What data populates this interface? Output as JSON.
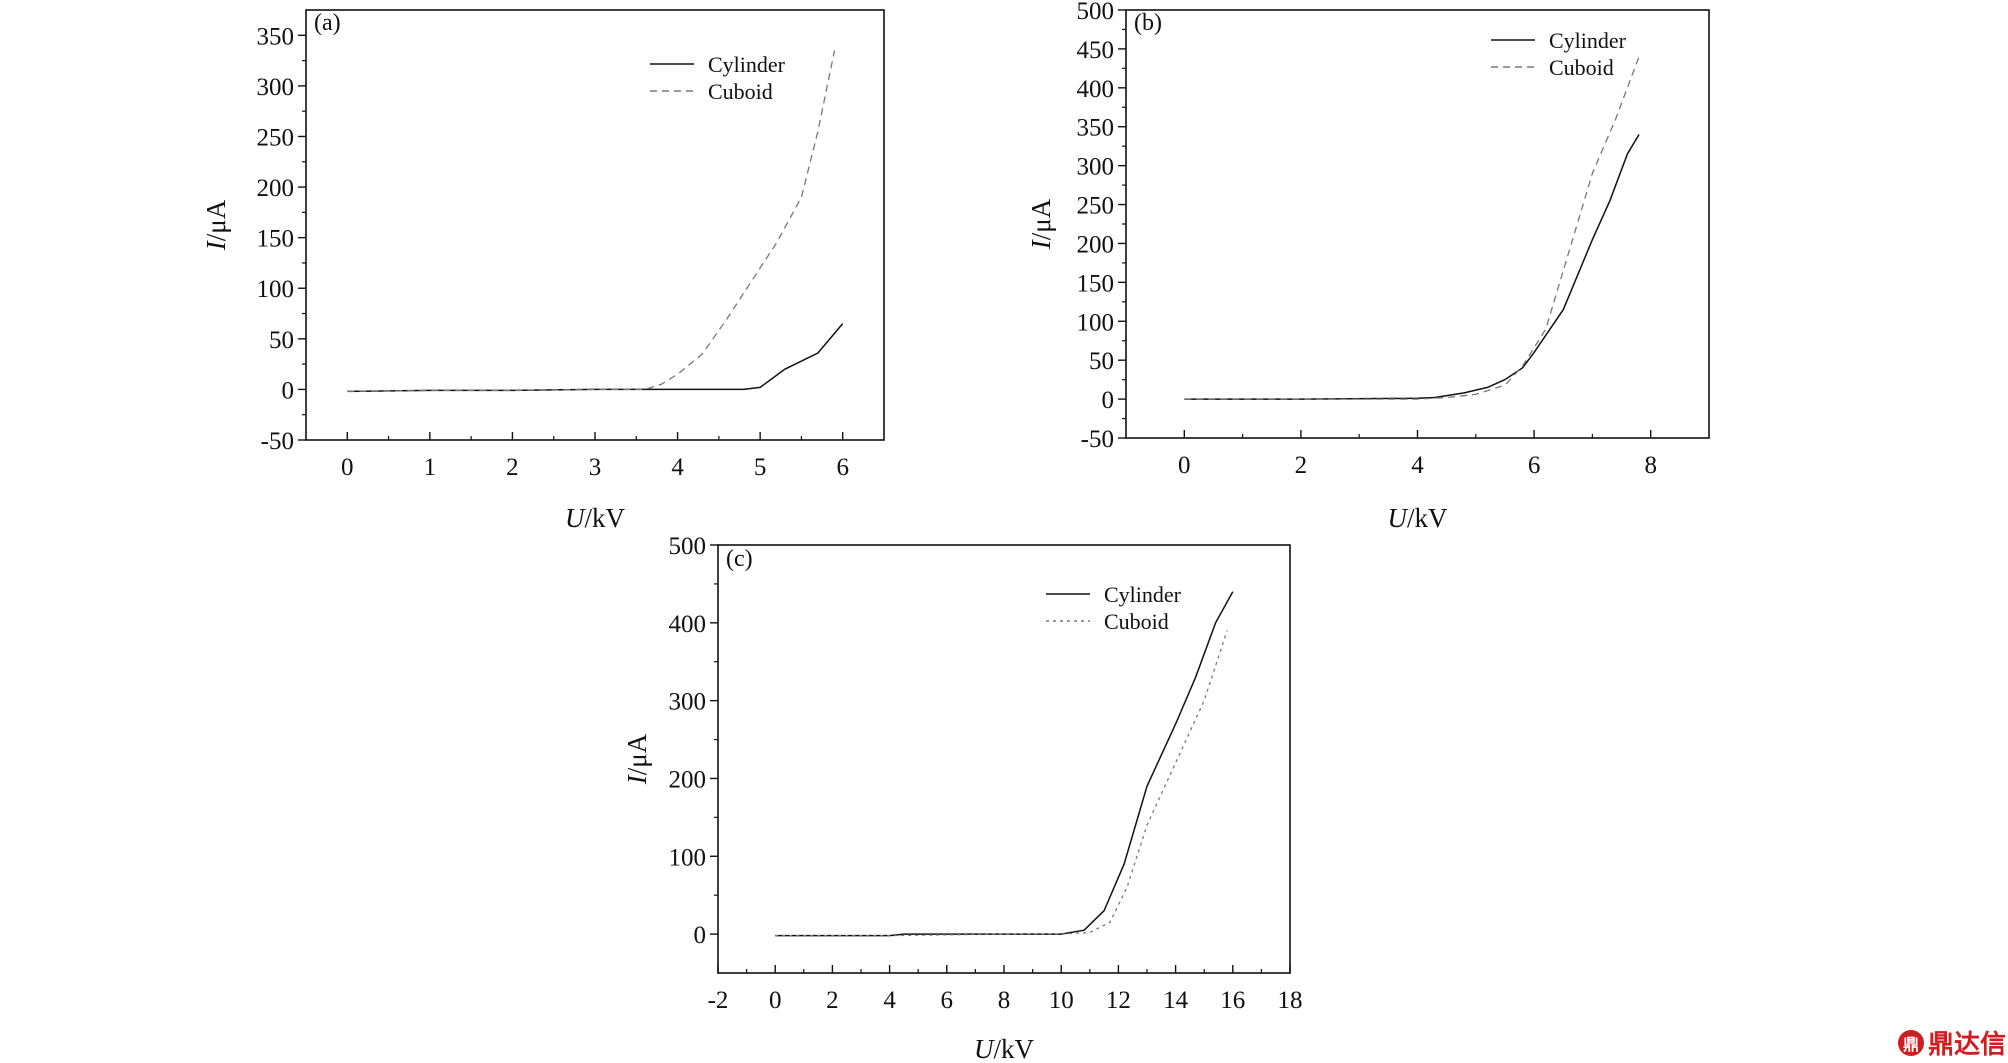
{
  "chart_data": [
    {
      "id": "a",
      "type": "line",
      "panel_label": "(a)",
      "xlabel_italic": "U",
      "xlabel_unit": "/kV",
      "ylabel_italic": "I",
      "ylabel_unit": "/μA",
      "xlim": [
        -0.5,
        6.5
      ],
      "ylim": [
        -50,
        375
      ],
      "xticks": [
        0,
        1,
        2,
        3,
        4,
        5,
        6
      ],
      "yticks": [
        -50,
        0,
        50,
        100,
        150,
        200,
        250,
        300,
        350
      ],
      "legend_position": "top-right",
      "series": [
        {
          "name": "Cylinder",
          "style": "solid",
          "x": [
            0,
            1,
            2,
            3,
            3.7,
            4,
            4.5,
            4.8,
            5,
            5.3,
            5.7,
            6
          ],
          "y": [
            -2,
            -1,
            -1,
            0,
            0,
            0,
            0,
            0,
            2,
            20,
            36,
            65
          ]
        },
        {
          "name": "Cuboid",
          "style": "dashed",
          "x": [
            0,
            1,
            2,
            3,
            3.6,
            3.8,
            4.0,
            4.3,
            4.6,
            5.0,
            5.2,
            5.5,
            5.7,
            5.9
          ],
          "y": [
            -2,
            -1,
            -1,
            0,
            0,
            5,
            15,
            35,
            70,
            120,
            145,
            190,
            255,
            335
          ]
        }
      ]
    },
    {
      "id": "b",
      "type": "line",
      "panel_label": "(b)",
      "xlabel_italic": "U",
      "xlabel_unit": "/kV",
      "ylabel_italic": "I",
      "ylabel_unit": "/μA",
      "xlim": [
        -1,
        9
      ],
      "ylim": [
        -50,
        500
      ],
      "xticks": [
        0,
        2,
        4,
        6,
        8
      ],
      "yticks": [
        -50,
        0,
        50,
        100,
        150,
        200,
        250,
        300,
        350,
        400,
        450,
        500
      ],
      "legend_position": "top-right",
      "series": [
        {
          "name": "Cylinder",
          "style": "solid",
          "x": [
            0,
            2,
            4,
            4.3,
            4.8,
            5.2,
            5.5,
            5.8,
            6.0,
            6.5,
            7.0,
            7.3,
            7.6,
            7.8
          ],
          "y": [
            0,
            0,
            1,
            2,
            8,
            15,
            25,
            40,
            60,
            115,
            205,
            255,
            315,
            340
          ]
        },
        {
          "name": "Cuboid",
          "style": "dashed",
          "x": [
            0,
            2,
            4,
            4.5,
            5.0,
            5.5,
            5.8,
            6.2,
            6.6,
            7.0,
            7.4,
            7.8
          ],
          "y": [
            0,
            0,
            0,
            2,
            6,
            18,
            42,
            90,
            190,
            290,
            360,
            440
          ]
        }
      ]
    },
    {
      "id": "c",
      "type": "line",
      "panel_label": "(c)",
      "xlabel_italic": "U",
      "xlabel_unit": "/kV",
      "ylabel_italic": "I",
      "ylabel_unit": "/μA",
      "xlim": [
        -2,
        18
      ],
      "ylim": [
        -50,
        500
      ],
      "xticks": [
        -2,
        0,
        2,
        4,
        6,
        8,
        10,
        12,
        14,
        16,
        18
      ],
      "yticks": [
        0,
        100,
        200,
        300,
        400,
        500
      ],
      "legend_position": "top-right",
      "series": [
        {
          "name": "Cylinder",
          "style": "solid",
          "x": [
            0,
            4,
            4.5,
            8,
            10,
            10.8,
            11.5,
            12.2,
            13,
            14,
            14.7,
            15.4,
            16
          ],
          "y": [
            -2,
            -2,
            0,
            0,
            0,
            5,
            30,
            90,
            190,
            270,
            330,
            400,
            440
          ]
        },
        {
          "name": "Cuboid",
          "style": "dotted",
          "x": [
            0,
            4,
            8,
            10,
            11,
            11.7,
            12.3,
            13,
            14,
            15,
            15.8
          ],
          "y": [
            -2,
            -2,
            0,
            0,
            2,
            15,
            60,
            140,
            220,
            300,
            390
          ]
        }
      ]
    }
  ],
  "watermark": {
    "logo_text": "鼎",
    "text": "鼎达信",
    "color": "#d01d22"
  }
}
